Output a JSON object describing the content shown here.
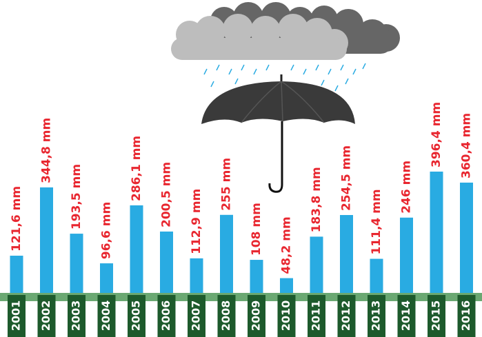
{
  "chart_data": {
    "type": "bar",
    "categories": [
      "2001",
      "2002",
      "2003",
      "2004",
      "2005",
      "2006",
      "2007",
      "2008",
      "2009",
      "2010",
      "2011",
      "2012",
      "2013",
      "2014",
      "2015",
      "2016"
    ],
    "values": [
      121.6,
      344.8,
      193.5,
      96.6,
      286.1,
      200.5,
      112.9,
      255,
      108,
      48.2,
      183.8,
      254.5,
      111.4,
      246,
      396.4,
      360.4
    ],
    "value_labels": [
      "121,6 mm",
      "344,8 mm",
      "193,5 mm",
      "96,6 mm",
      "286,1 mm",
      "200,5 mm",
      "112,9 mm",
      "255 mm",
      "108 mm",
      "48,2 mm",
      "183,8 mm",
      "254,5 mm",
      "111,4 mm",
      "246 mm",
      "396,4 mm",
      "360,4 mm"
    ],
    "color": "#29abe2"
  }
}
